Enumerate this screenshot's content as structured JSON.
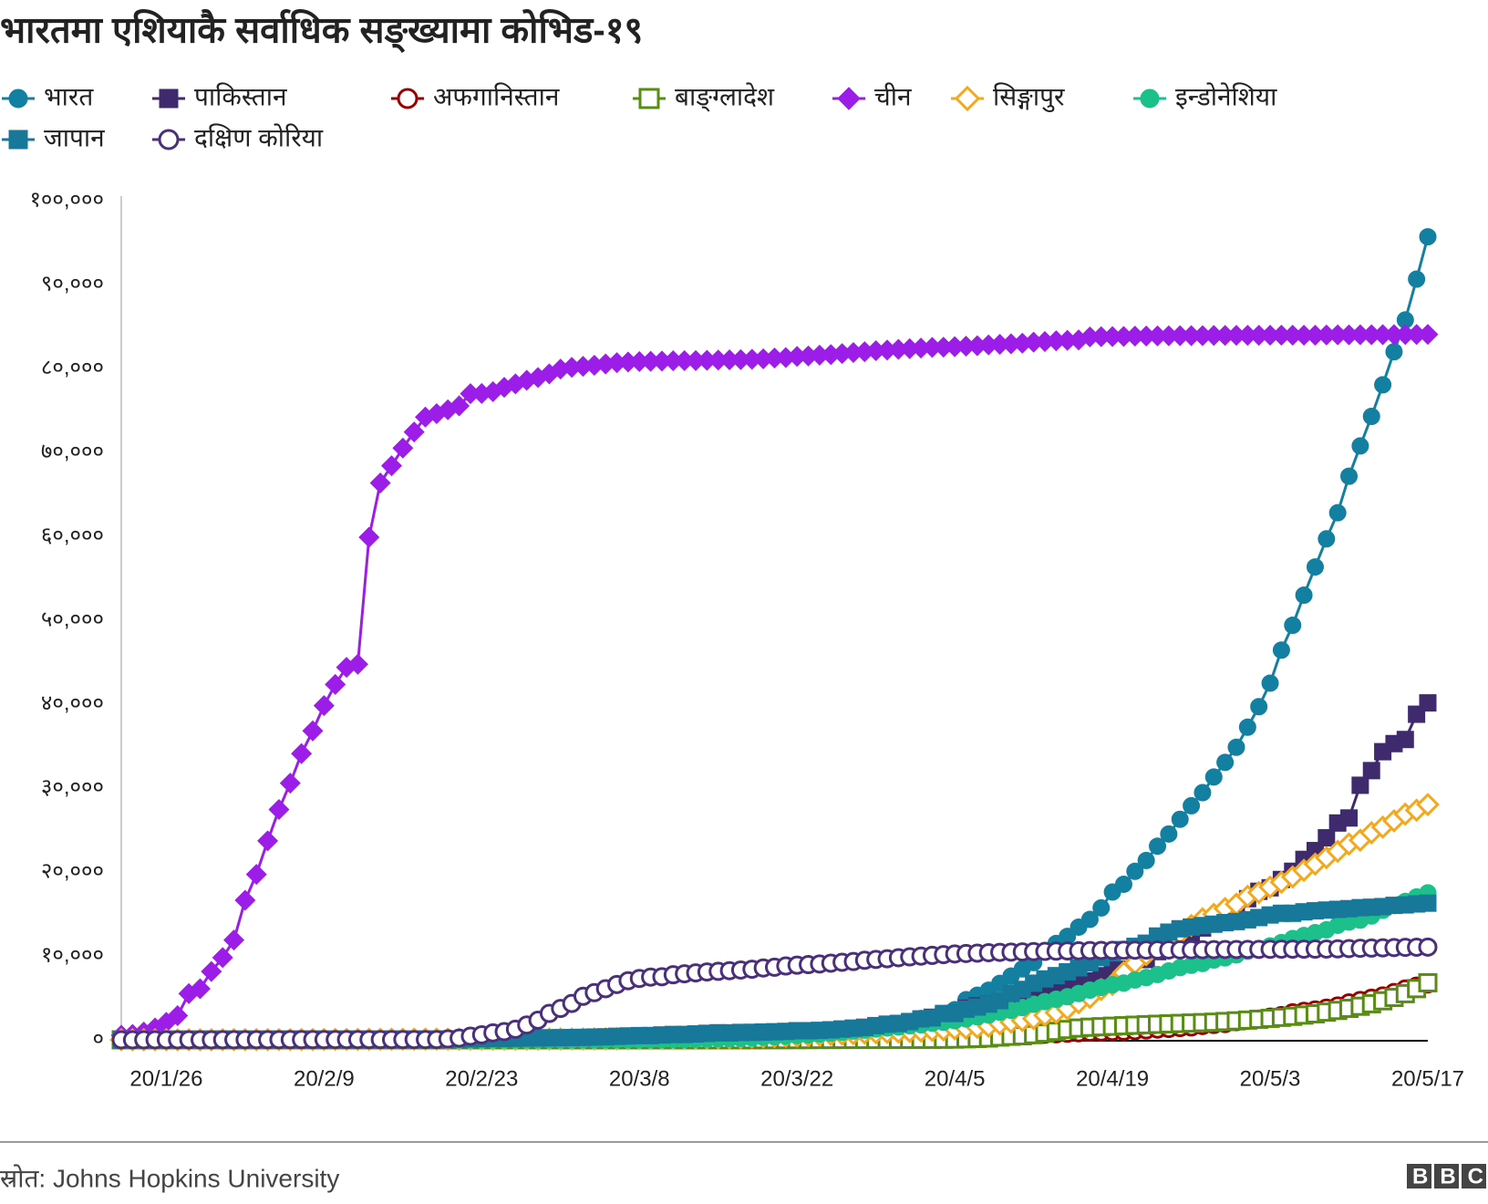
{
  "chart_data": {
    "type": "line",
    "title": "भारतमा एशियाकै सर्वाधिक सङ्ख्यामा कोभिड-१९",
    "categories": [
      null,
      null,
      null,
      null,
      "20/1/26",
      null,
      null,
      null,
      null,
      null,
      null,
      null,
      null,
      null,
      null,
      null,
      null,
      null,
      "20/2/9",
      null,
      null,
      null,
      null,
      null,
      null,
      null,
      null,
      null,
      null,
      null,
      null,
      null,
      "20/2/23",
      null,
      null,
      null,
      null,
      null,
      null,
      null,
      null,
      null,
      null,
      null,
      null,
      null,
      "20/3/8",
      null,
      null,
      null,
      null,
      null,
      null,
      null,
      null,
      null,
      null,
      null,
      null,
      null,
      "20/3/22",
      null,
      null,
      null,
      null,
      null,
      null,
      null,
      null,
      null,
      null,
      null,
      null,
      null,
      "20/4/5",
      null,
      null,
      null,
      null,
      null,
      null,
      null,
      null,
      null,
      null,
      null,
      null,
      null,
      "20/4/19",
      null,
      null,
      null,
      null,
      null,
      null,
      null,
      null,
      null,
      null,
      null,
      null,
      null,
      "20/5/3",
      null,
      null,
      null,
      null,
      null,
      null,
      null,
      null,
      null,
      null,
      null,
      null,
      null,
      "20/5/17"
    ],
    "ylim": [
      0,
      100000
    ],
    "yticks": [
      {
        "value": 0,
        "label": "०"
      },
      {
        "value": 10000,
        "label": "१०,०००"
      },
      {
        "value": 20000,
        "label": "२०,०००"
      },
      {
        "value": 30000,
        "label": "३०,०००"
      },
      {
        "value": 40000,
        "label": "४०,०००"
      },
      {
        "value": 50000,
        "label": "५०,०००"
      },
      {
        "value": 60000,
        "label": "६०,०००"
      },
      {
        "value": 70000,
        "label": "७०,०००"
      },
      {
        "value": 80000,
        "label": "८०,०००"
      },
      {
        "value": 90000,
        "label": "९०,०००"
      },
      {
        "value": 100000,
        "label": "१००,०००"
      }
    ],
    "grid": false,
    "series": [
      {
        "name": "भारत",
        "color": "#1380a1",
        "marker": "circle",
        "filled": true,
        "values": [
          0,
          0,
          0,
          0,
          0,
          0,
          0,
          0,
          1,
          1,
          1,
          2,
          3,
          3,
          3,
          3,
          3,
          3,
          3,
          3,
          3,
          3,
          3,
          3,
          3,
          3,
          3,
          3,
          3,
          3,
          3,
          3,
          3,
          3,
          3,
          3,
          3,
          3,
          3,
          3,
          5,
          5,
          28,
          30,
          31,
          34,
          39,
          43,
          56,
          62,
          73,
          82,
          102,
          113,
          119,
          142,
          156,
          194,
          244,
          330,
          396,
          499,
          536,
          657,
          727,
          887,
          987,
          1024,
          1251,
          1397,
          1998,
          2543,
          2567,
          3082,
          3588,
          4778,
          5311,
          5916,
          6725,
          7598,
          8446,
          9205,
          10453,
          11487,
          12322,
          13430,
          14352,
          15722,
          17615,
          18539,
          20080,
          21370,
          23077,
          24530,
          26283,
          27890,
          29451,
          31324,
          33062,
          34863,
          37257,
          39699,
          42505,
          46437,
          49400,
          52987,
          56351,
          59695,
          62808,
          67161,
          70768,
          74292,
          78055,
          81997,
          85784,
          90648,
          95698
        ]
      },
      {
        "name": "पाकिस्तान",
        "color": "#3f2a6e",
        "marker": "square",
        "filled": true,
        "values": [
          0,
          0,
          0,
          0,
          0,
          0,
          0,
          0,
          0,
          0,
          0,
          0,
          0,
          0,
          0,
          0,
          0,
          0,
          0,
          0,
          0,
          0,
          0,
          0,
          0,
          0,
          0,
          0,
          0,
          0,
          0,
          0,
          0,
          0,
          0,
          2,
          2,
          2,
          4,
          4,
          4,
          5,
          5,
          5,
          6,
          6,
          6,
          6,
          16,
          19,
          20,
          28,
          31,
          53,
          136,
          236,
          299,
          454,
          501,
          730,
          776,
          875,
          972,
          1063,
          1201,
          1373,
          1495,
          1597,
          1717,
          1938,
          2118,
          2421,
          2686,
          2818,
          3157,
          3766,
          4035,
          4263,
          4489,
          4601,
          4920,
          5374,
          5716,
          5988,
          6383,
          6919,
          7025,
          7638,
          8348,
          8418,
          9565,
          9565,
          10513,
          11155,
          11940,
          12657,
          13328,
          13915,
          14612,
          15525,
          16817,
          17699,
          18114,
          19103,
          20084,
          21501,
          22550,
          24073,
          25837,
          26435,
          30334,
          32081,
          34336,
          35298,
          35788,
          38799,
          40151
        ]
      },
      {
        "name": "अफगानिस्तान",
        "color": "#990000",
        "marker": "circle",
        "filled": false,
        "values": [
          0,
          0,
          0,
          0,
          0,
          0,
          0,
          0,
          0,
          0,
          0,
          0,
          0,
          0,
          0,
          0,
          0,
          0,
          0,
          0,
          0,
          0,
          0,
          0,
          0,
          0,
          0,
          0,
          0,
          0,
          0,
          0,
          0,
          1,
          1,
          1,
          1,
          1,
          1,
          1,
          1,
          1,
          1,
          1,
          1,
          4,
          4,
          4,
          7,
          7,
          7,
          7,
          11,
          16,
          21,
          22,
          22,
          22,
          24,
          24,
          40,
          40,
          74,
          84,
          94,
          110,
          110,
          120,
          170,
          174,
          237,
          273,
          281,
          299,
          349,
          367,
          423,
          444,
          484,
          521,
          555,
          607,
          665,
          714,
          784,
          840,
          906,
          933,
          996,
          1026,
          1092,
          1176,
          1279,
          1351,
          1463,
          1531,
          1703,
          1828,
          1939,
          2171,
          2335,
          2469,
          2704,
          2894,
          3224,
          3392,
          3563,
          3778,
          4033,
          4402,
          4687,
          4963,
          5226,
          5639,
          6053,
          6402,
          6664
        ]
      },
      {
        "name": "बाङ्ग्लादेश",
        "color": "#588c12",
        "marker": "square",
        "filled": false,
        "values": [
          0,
          0,
          0,
          0,
          0,
          0,
          0,
          0,
          0,
          0,
          0,
          0,
          0,
          0,
          0,
          0,
          0,
          0,
          0,
          0,
          0,
          0,
          0,
          0,
          0,
          0,
          0,
          0,
          0,
          0,
          0,
          0,
          0,
          0,
          0,
          0,
          0,
          0,
          0,
          0,
          0,
          0,
          0,
          0,
          0,
          0,
          3,
          3,
          3,
          3,
          3,
          3,
          3,
          5,
          8,
          10,
          14,
          17,
          20,
          24,
          27,
          33,
          39,
          39,
          44,
          48,
          48,
          48,
          49,
          51,
          54,
          56,
          61,
          70,
          88,
          123,
          164,
          218,
          330,
          424,
          482,
          621,
          803,
          1012,
          1231,
          1400,
          1500,
          1560,
          1620,
          1680,
          1740,
          1800,
          1850,
          1900,
          1950,
          2000,
          2050,
          2100,
          2180,
          2260,
          2350,
          2450,
          2560,
          2680,
          2800,
          2950,
          3100,
          3300,
          3500,
          3750,
          4000,
          4300,
          4650,
          5050,
          5500,
          6100,
          6800
        ]
      },
      {
        "name": "चीन",
        "color": "#9c1de8",
        "marker": "diamond",
        "filled": true,
        "values": [
          548,
          643,
          920,
          1406,
          2075,
          2877,
          5509,
          6087,
          8141,
          9802,
          11891,
          16630,
          19716,
          23707,
          27440,
          30587,
          34110,
          36814,
          39829,
          42354,
          44386,
          44759,
          59895,
          66358,
          68413,
          70513,
          72434,
          74211,
          74619,
          75077,
          75550,
          77001,
          77022,
          77241,
          77754,
          78166,
          78600,
          78928,
          79356,
          79932,
          80136,
          80261,
          80386,
          80537,
          80690,
          80770,
          80823,
          80860,
          80887,
          80921,
          80932,
          80945,
          80977,
          81003,
          81033,
          81058,
          81102,
          81156,
          81250,
          81305,
          81435,
          81498,
          81591,
          81661,
          81782,
          81897,
          81999,
          82122,
          82198,
          82279,
          82361,
          82432,
          82511,
          82543,
          82602,
          82665,
          82718,
          82809,
          82883,
          82941,
          83014,
          83134,
          83213,
          83306,
          83356,
          83403,
          83760,
          83787,
          83805,
          83817,
          83853,
          83868,
          83884,
          83899,
          83909,
          83912,
          83918,
          83940,
          83944,
          83956,
          83959,
          83959,
          83964,
          83966,
          83970,
          83968,
          83970,
          83990,
          84010,
          84011,
          84018,
          84024,
          84029,
          84038,
          84044,
          84054,
          84063
        ]
      },
      {
        "name": "सिङ्गापुर",
        "color": "#f4a81d",
        "marker": "diamond",
        "filled": false,
        "values": [
          0,
          1,
          3,
          3,
          4,
          5,
          7,
          7,
          10,
          13,
          16,
          18,
          18,
          24,
          28,
          28,
          30,
          33,
          40,
          45,
          47,
          50,
          58,
          67,
          72,
          75,
          77,
          81,
          84,
          84,
          85,
          85,
          89,
          89,
          91,
          93,
          93,
          93,
          102,
          106,
          108,
          110,
          112,
          117,
          130,
          138,
          150,
          150,
          160,
          178,
          178,
          200,
          212,
          226,
          243,
          266,
          313,
          345,
          385,
          432,
          455,
          509,
          558,
          631,
          683,
          732,
          802,
          844,
          879,
          926,
          1000,
          1049,
          1114,
          1189,
          1309,
          1375,
          1481,
          1623,
          1910,
          2108,
          2299,
          2532,
          2918,
          3252,
          3699,
          4427,
          5050,
          5992,
          6588,
          8014,
          9125,
          10141,
          11178,
          12075,
          12693,
          13624,
          14423,
          14951,
          15641,
          16169,
          17101,
          17548,
          18205,
          18778,
          19410,
          20198,
          20939,
          21707,
          22460,
          23336,
          23787,
          24671,
          25346,
          26098,
          26891,
          27356,
          28038
        ]
      },
      {
        "name": "इन्डोनेशिया",
        "color": "#1bc08a",
        "marker": "circle",
        "filled": true,
        "values": [
          0,
          0,
          0,
          0,
          0,
          0,
          0,
          0,
          0,
          0,
          0,
          0,
          0,
          0,
          0,
          0,
          0,
          0,
          0,
          0,
          0,
          0,
          0,
          0,
          0,
          0,
          0,
          0,
          0,
          0,
          0,
          0,
          0,
          0,
          0,
          0,
          0,
          0,
          0,
          0,
          2,
          2,
          2,
          2,
          4,
          4,
          6,
          19,
          27,
          34,
          34,
          69,
          96,
          117,
          134,
          172,
          227,
          311,
          369,
          450,
          514,
          579,
          686,
          790,
          893,
          1046,
          1155,
          1285,
          1414,
          1528,
          1677,
          1790,
          1986,
          2092,
          2273,
          2491,
          2738,
          2956,
          3293,
          3512,
          3842,
          4241,
          4557,
          4839,
          5136,
          5516,
          5923,
          6248,
          6575,
          6760,
          7135,
          7418,
          7775,
          8211,
          8607,
          8882,
          9096,
          9511,
          9771,
          10118,
          10551,
          10843,
          11192,
          11587,
          12071,
          12438,
          12776,
          13112,
          13645,
          14032,
          14265,
          14749,
          15438,
          16006,
          16496,
          17025,
          17514
        ]
      },
      {
        "name": "जापान",
        "color": "#17789a",
        "marker": "square",
        "filled": true,
        "values": [
          2,
          2,
          2,
          2,
          4,
          4,
          7,
          7,
          11,
          15,
          20,
          20,
          20,
          22,
          22,
          22,
          25,
          25,
          26,
          26,
          26,
          28,
          28,
          29,
          43,
          59,
          66,
          74,
          84,
          94,
          105,
          122,
          147,
          159,
          170,
          189,
          214,
          228,
          241,
          256,
          274,
          293,
          331,
          360,
          420,
          461,
          502,
          511,
          581,
          639,
          639,
          701,
          773,
          839,
          825,
          878,
          889,
          924,
          963,
          1007,
          1086,
          1086,
          1128,
          1193,
          1291,
          1387,
          1468,
          1693,
          1866,
          1953,
          2178,
          2495,
          2617,
          3139,
          3139,
          3654,
          3906,
          4257,
          4667,
          5530,
          6005,
          6748,
          7255,
          7645,
          8100,
          8582,
          9167,
          9795,
          10361,
          10751,
          11135,
          11512,
          12368,
          12829,
          13231,
          13441,
          13614,
          13778,
          13965,
          14088,
          14305,
          14571,
          14877,
          15078,
          15078,
          15253,
          15374,
          15463,
          15547,
          15628,
          15747,
          15798,
          15874,
          16024,
          16079,
          16193,
          16285
        ]
      },
      {
        "name": "दक्षिण कोरिया",
        "color": "#4a2f7a",
        "marker": "circle",
        "filled": false,
        "values": [
          1,
          1,
          2,
          2,
          3,
          4,
          4,
          4,
          4,
          11,
          12,
          15,
          15,
          16,
          19,
          23,
          24,
          24,
          25,
          27,
          28,
          28,
          28,
          28,
          28,
          29,
          30,
          31,
          31,
          104,
          204,
          433,
          602,
          833,
          977,
          1261,
          1766,
          2337,
          3150,
          3736,
          4335,
          5186,
          5621,
          6088,
          6593,
          7041,
          7314,
          7478,
          7513,
          7755,
          7869,
          7979,
          8086,
          8162,
          8236,
          8320,
          8413,
          8565,
          8652,
          8799,
          8897,
          8961,
          9037,
          9137,
          9241,
          9332,
          9478,
          9583,
          9661,
          9786,
          9887,
          9976,
          10062,
          10156,
          10237,
          10284,
          10331,
          10384,
          10423,
          10450,
          10480,
          10512,
          10537,
          10564,
          10591,
          10613,
          10635,
          10653,
          10661,
          10674,
          10683,
          10694,
          10702,
          10708,
          10718,
          10728,
          10738,
          10752,
          10761,
          10765,
          10774,
          10780,
          10793,
          10801,
          10804,
          10806,
          10810,
          10822,
          10840,
          10874,
          10909,
          10936,
          10962,
          10991,
          11018,
          11037,
          11050
        ]
      }
    ]
  },
  "footer": {
    "source": "स्रोत: Johns Hopkins University",
    "logo": "BBC"
  }
}
